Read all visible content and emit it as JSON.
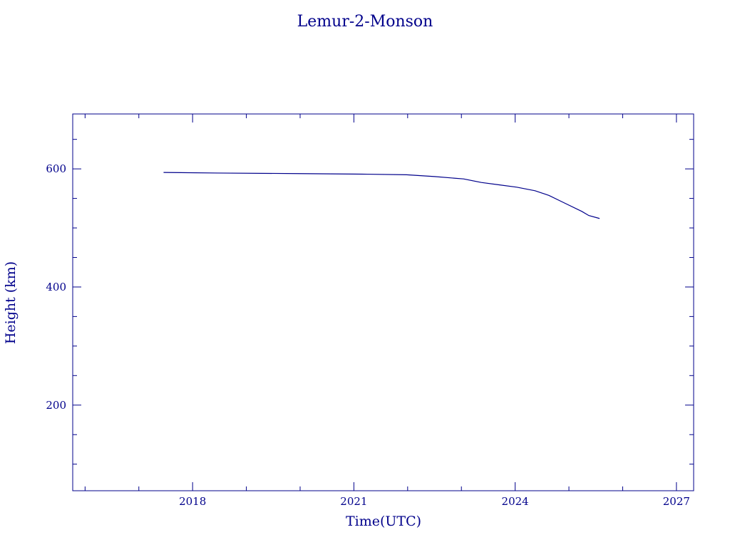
{
  "chart_data": {
    "type": "line",
    "title": "Lemur-2-Monson",
    "x_label": "Time(UTC)",
    "y_label": "Height (km)",
    "x": [
      2017.46,
      2018.46,
      2019.99,
      2021.25,
      2021.98,
      2022.5,
      2023.04,
      2023.37,
      2023.7,
      2024.03,
      2024.37,
      2024.63,
      2024.9,
      2025.24,
      2025.37,
      2025.57
    ],
    "values": [
      594,
      593,
      592,
      591,
      590,
      587,
      583,
      577,
      573,
      569,
      563,
      555,
      543,
      528,
      521,
      516
    ],
    "color": "#00008b",
    "xlim": [
      2015.77,
      2027.32
    ],
    "xticks": [
      2018,
      2021,
      2024,
      2027
    ],
    "xminorticks": [
      2016,
      2017,
      2019,
      2020,
      2022,
      2023,
      2025,
      2026
    ],
    "ylim": [
      55,
      693
    ],
    "yticks": [
      200,
      400,
      600
    ],
    "yminorticks": [
      100,
      150,
      250,
      300,
      350,
      450,
      500,
      550,
      650
    ],
    "grid": false
  }
}
